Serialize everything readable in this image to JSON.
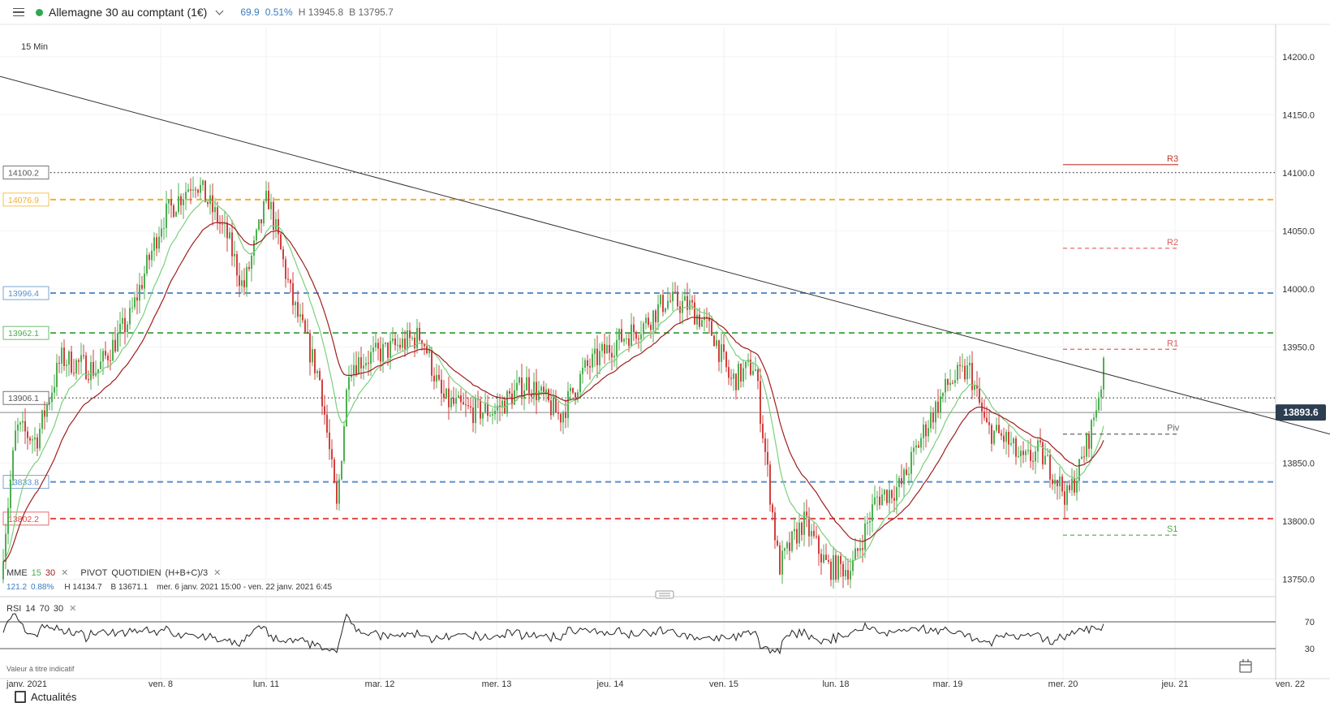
{
  "header": {
    "instrument": "Allemagne 30 au comptant (1€)",
    "change": "69.9",
    "change_pct": "0.51%",
    "high": "H 13945.8",
    "low": "B 13795.7",
    "status_color": "#2fa84f"
  },
  "timeframe": "15 Min",
  "indicators": {
    "mme": {
      "label": "MME",
      "p1": "15",
      "p2": "30"
    },
    "pivot": {
      "label": "PIVOT",
      "type": "QUOTIDIEN",
      "formula": "(H+B+C)/3"
    },
    "stats": {
      "range": "121.2",
      "pct": "0.88%",
      "high": "H 14134.7",
      "low": "B 13671.1",
      "period": "mer. 6 janv. 2021 15:00 - ven. 22 janv. 2021 6:45"
    },
    "rsi": {
      "label": "RSI",
      "p1": "14",
      "p2": "70",
      "p3": "30"
    }
  },
  "footnote": "Valeur à titre indicatif",
  "news_label": "Actualités",
  "chart_data": {
    "type": "candlestick",
    "y_range": [
      13735,
      14225
    ],
    "y_ticks": [
      "14200.0",
      "14150.0",
      "14100.0",
      "14050.0",
      "14000.0",
      "13950.0",
      "13850.0",
      "13800.0",
      "13750.0"
    ],
    "x_ticks": [
      "janv. 2021",
      "ven. 8",
      "lun. 11",
      "mar. 12",
      "mer. 13",
      "jeu. 14",
      "ven. 15",
      "lun. 18",
      "mar. 19",
      "mer. 20",
      "jeu. 21",
      "ven. 22"
    ],
    "current_price": "13893.6",
    "levels": [
      {
        "label": "14100.2",
        "value": 14100.2,
        "style": "dotted",
        "color": "#555555"
      },
      {
        "label": "14076.9",
        "value": 14076.9,
        "style": "dashed",
        "color": "#f0b030"
      },
      {
        "label": "13996.4",
        "value": 13996.4,
        "style": "dashed",
        "color": "#5b8fc9"
      },
      {
        "label": "13962.1",
        "value": 13962.1,
        "style": "dashed",
        "color": "#4caa4c"
      },
      {
        "label": "13906.1",
        "value": 13906.1,
        "style": "dotted",
        "color": "#555555"
      },
      {
        "label": "13833.8",
        "value": 13833.8,
        "style": "dashed",
        "color": "#5b8fc9"
      },
      {
        "label": "13802.2",
        "value": 13802.2,
        "style": "dashed",
        "color": "#e04848"
      }
    ],
    "pivots": [
      {
        "label": "R3",
        "value": 14107,
        "color": "#c0392b"
      },
      {
        "label": "R2",
        "value": 14035,
        "color": "#e06060"
      },
      {
        "label": "R1",
        "value": 13948,
        "color": "#e06060"
      },
      {
        "label": "Piv",
        "value": 13875,
        "color": "#666666"
      },
      {
        "label": "S1",
        "value": 13788,
        "color": "#4caa4c"
      }
    ],
    "trendline": [
      {
        "y": 14183
      },
      {
        "y": 13875
      }
    ],
    "rsi_levels": [
      "70",
      "30"
    ],
    "colors": {
      "up": "#4caf50",
      "down": "#d23f3f",
      "ema15": "#7ccf7c",
      "ema30": "#a01e1e"
    }
  }
}
